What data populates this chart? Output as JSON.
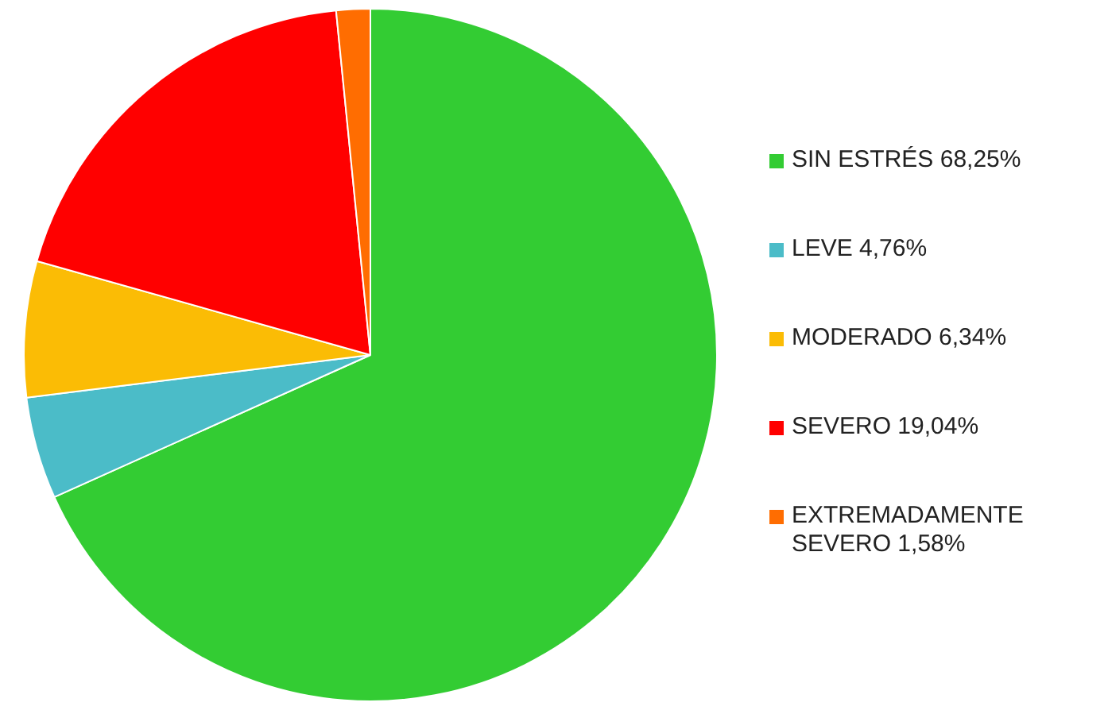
{
  "chart_data": {
    "type": "pie",
    "categories": [
      "SIN ESTRÉS 68,25%",
      "LEVE 4,76%",
      "MODERADO 6,34%",
      "SEVERO 19,04%",
      "EXTREMADAMENTE SEVERO 1,58%"
    ],
    "values": [
      68.25,
      4.76,
      6.34,
      19.04,
      1.58
    ],
    "colors": [
      "#33cc33",
      "#4bbcc8",
      "#fbbc05",
      "#ff0000",
      "#ff6d01"
    ],
    "legend": "right"
  }
}
